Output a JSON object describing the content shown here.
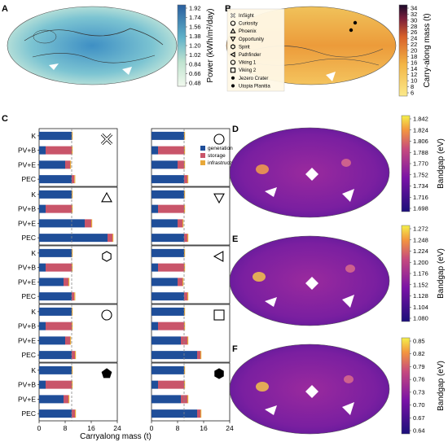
{
  "colors": {
    "generation": "#1f4e99",
    "storage": "#c9556a",
    "infrastructure": "#e8a83a",
    "refline": "#888888"
  },
  "panelA": {
    "label": "A",
    "colorbar_title": "Power (kWh/m²/day)",
    "ticks": [
      "1.92",
      "1.74",
      "1.56",
      "1.38",
      "1.20",
      "1.02",
      "0.84",
      "0.66",
      "0.48"
    ]
  },
  "panelB": {
    "label": "B",
    "colorbar_title": "Carry-along mass (t)",
    "ticks": [
      "34",
      "32",
      "30",
      "28",
      "26",
      "24",
      "22",
      "20",
      "18",
      "16",
      "14",
      "12",
      "10",
      "8",
      "6"
    ],
    "legend": [
      {
        "icon": "cross-icon",
        "label": "InSight"
      },
      {
        "icon": "circle-icon",
        "label": "Curiosity"
      },
      {
        "icon": "triangle-up-icon",
        "label": "Phoenix"
      },
      {
        "icon": "triangle-down-icon",
        "label": "Opportunity"
      },
      {
        "icon": "hexagon-icon",
        "label": "Spirit"
      },
      {
        "icon": "triangle-left-icon",
        "label": "Pathfinder"
      },
      {
        "icon": "circle-icon",
        "label": "Viking 1"
      },
      {
        "icon": "square-icon",
        "label": "Viking 2"
      },
      {
        "icon": "filled-dot-icon",
        "label": "Jezero Crater"
      },
      {
        "icon": "filled-dot-icon",
        "label": "Utopia Planitia"
      }
    ]
  },
  "panelC": {
    "label": "C",
    "xlabel": "Carryalong mass (t)",
    "xticks": [
      "0",
      "8",
      "16",
      "24"
    ],
    "legend": [
      "generation",
      "storage",
      "infrastructure"
    ]
  },
  "panelD": {
    "label": "D",
    "colorbar_title": "Bandgap (eV)",
    "ticks": [
      "1.842",
      "1.824",
      "1.806",
      "1.788",
      "1.770",
      "1.752",
      "1.734",
      "1.716",
      "1.698"
    ]
  },
  "panelE": {
    "label": "E",
    "colorbar_title": "Bandgap (eV)",
    "ticks": [
      "1.272",
      "1.248",
      "1.224",
      "1.200",
      "1.176",
      "1.152",
      "1.128",
      "1.104",
      "1.080"
    ]
  },
  "panelF": {
    "label": "F",
    "colorbar_title": "Bandgap (eV)",
    "ticks": [
      "0.85",
      "0.82",
      "0.79",
      "0.76",
      "0.73",
      "0.70",
      "0.67",
      "0.64"
    ]
  },
  "chart_data": [
    {
      "type": "bar",
      "orientation": "horizontal",
      "stacked": true,
      "xlabel": "Carryalong mass (t)",
      "xlim": [
        0,
        24
      ],
      "categories": [
        "K",
        "PV+B",
        "PV+E",
        "PEC"
      ],
      "subplots": [
        {
          "marker": "cross-icon",
          "series": [
            {
              "name": "generation",
              "values": [
                10,
                2,
                8,
                10
              ]
            },
            {
              "name": "storage",
              "values": [
                0,
                8,
                1.5,
                0.8
              ]
            },
            {
              "name": "infrastructure",
              "values": [
                0.3,
                0.3,
                0.3,
                0.3
              ]
            }
          ]
        },
        {
          "marker": "circle-icon",
          "series": [
            {
              "name": "generation",
              "values": [
                10,
                2,
                8,
                10
              ]
            },
            {
              "name": "storage",
              "values": [
                0,
                8,
                2,
                1
              ]
            },
            {
              "name": "infrastructure",
              "values": [
                0.3,
                0.3,
                0.3,
                0.3
              ]
            }
          ]
        },
        {
          "marker": "triangle-up-icon",
          "series": [
            {
              "name": "generation",
              "values": [
                10,
                2,
                14,
                21
              ]
            },
            {
              "name": "storage",
              "values": [
                0,
                8,
                2,
                1.5
              ]
            },
            {
              "name": "infrastructure",
              "values": [
                0.3,
                0.3,
                0.3,
                0.3
              ]
            }
          ]
        },
        {
          "marker": "triangle-down-icon",
          "series": [
            {
              "name": "generation",
              "values": [
                10,
                2,
                8,
                10
              ]
            },
            {
              "name": "storage",
              "values": [
                0,
                8,
                1.5,
                1
              ]
            },
            {
              "name": "infrastructure",
              "values": [
                0.3,
                0.3,
                0.3,
                0.3
              ]
            }
          ]
        },
        {
          "marker": "hexagon-icon",
          "series": [
            {
              "name": "generation",
              "values": [
                10,
                2,
                7.5,
                10
              ]
            },
            {
              "name": "storage",
              "values": [
                0,
                8,
                1.5,
                0.8
              ]
            },
            {
              "name": "infrastructure",
              "values": [
                0.3,
                0.3,
                0.3,
                0.3
              ]
            }
          ]
        },
        {
          "marker": "triangle-left-icon",
          "series": [
            {
              "name": "generation",
              "values": [
                10,
                2,
                8,
                10
              ]
            },
            {
              "name": "storage",
              "values": [
                0,
                8,
                1.5,
                1
              ]
            },
            {
              "name": "infrastructure",
              "values": [
                0.3,
                0.3,
                0.3,
                0.3
              ]
            }
          ]
        },
        {
          "marker": "circle-icon",
          "series": [
            {
              "name": "generation",
              "values": [
                10,
                2,
                8,
                10
              ]
            },
            {
              "name": "storage",
              "values": [
                0,
                8,
                1.5,
                1
              ]
            },
            {
              "name": "infrastructure",
              "values": [
                0.3,
                0.3,
                0.3,
                0.3
              ]
            }
          ]
        },
        {
          "marker": "square-icon",
          "series": [
            {
              "name": "generation",
              "values": [
                10,
                2,
                9,
                14
              ]
            },
            {
              "name": "storage",
              "values": [
                0,
                8,
                2,
                1
              ]
            },
            {
              "name": "infrastructure",
              "values": [
                0.3,
                0.3,
                0.3,
                0.3
              ]
            }
          ]
        },
        {
          "marker": "filled-pentagon-icon",
          "series": [
            {
              "name": "generation",
              "values": [
                10,
                2,
                7.5,
                10
              ]
            },
            {
              "name": "storage",
              "values": [
                0,
                8,
                1.5,
                1
              ]
            },
            {
              "name": "infrastructure",
              "values": [
                0.3,
                0.3,
                0.3,
                0.3
              ]
            }
          ]
        },
        {
          "marker": "filled-hexagon-icon",
          "series": [
            {
              "name": "generation",
              "values": [
                10,
                2,
                9,
                14
              ]
            },
            {
              "name": "storage",
              "values": [
                0,
                8,
                2,
                1
              ]
            },
            {
              "name": "infrastructure",
              "values": [
                0.3,
                0.3,
                0.3,
                0.3
              ]
            }
          ]
        }
      ]
    }
  ]
}
